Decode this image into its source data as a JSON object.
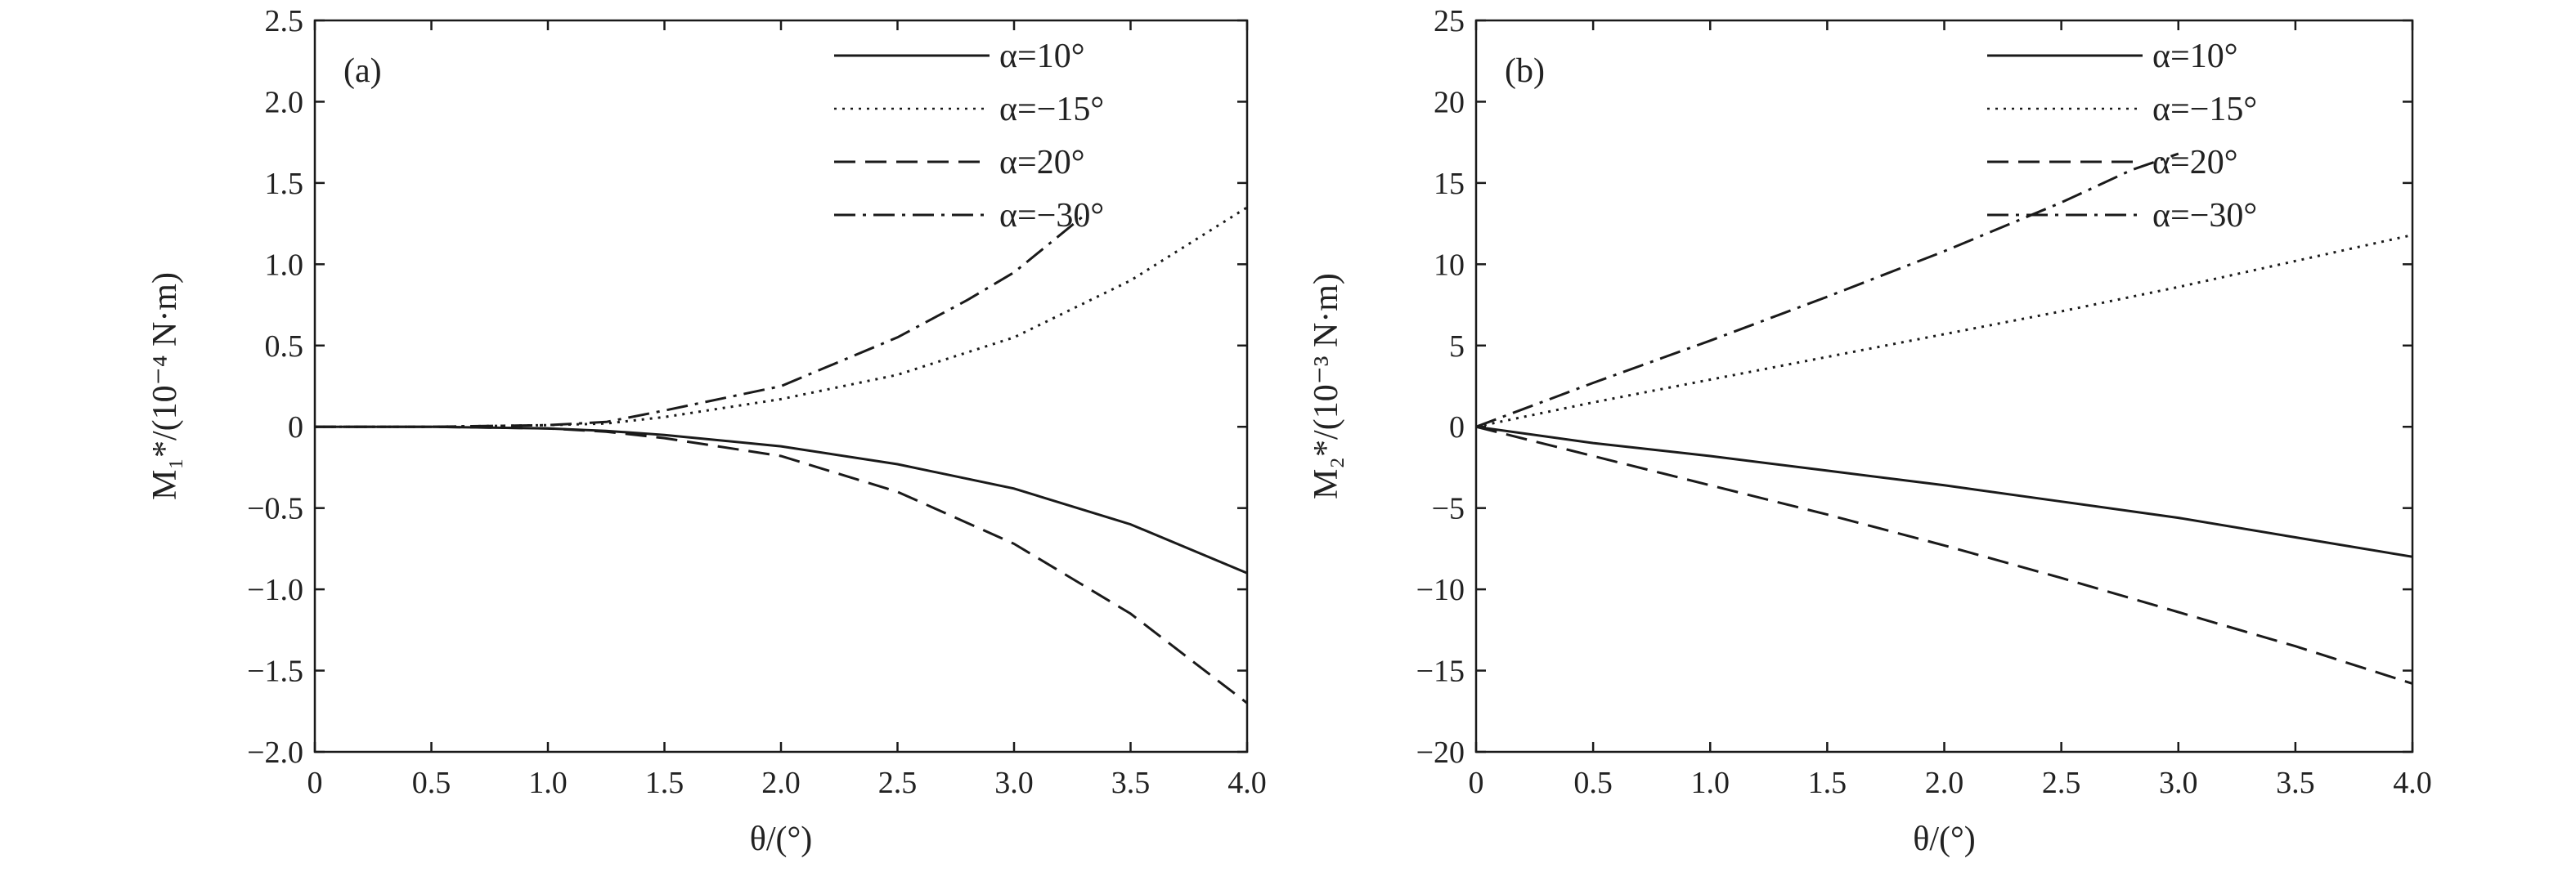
{
  "chart_data": [
    {
      "type": "line",
      "panel_label": "(a)",
      "xlabel": "θ/(°)",
      "ylabel": "M₁*/(10⁻⁴ N·m)",
      "xlim": [
        0,
        4.0
      ],
      "ylim": [
        -2.0,
        2.5
      ],
      "xticks": [
        "0",
        "0.5",
        "1.0",
        "1.5",
        "2.0",
        "2.5",
        "3.0",
        "3.5",
        "4.0"
      ],
      "yticks": [
        "−2.0",
        "−1.5",
        "−1.0",
        "−0.5",
        "0",
        "0.5",
        "1.0",
        "1.5",
        "2.0",
        "2.5"
      ],
      "legend_position": "top-right",
      "grid": false,
      "series": [
        {
          "name": "α=10°",
          "style": "solid",
          "x": [
            0,
            0.5,
            1.0,
            1.25,
            1.5,
            2.0,
            2.5,
            3.0,
            3.5,
            4.0
          ],
          "y": [
            0,
            0,
            -0.01,
            -0.025,
            -0.05,
            -0.12,
            -0.23,
            -0.38,
            -0.6,
            -0.9
          ]
        },
        {
          "name": "α=−15°",
          "style": "dotted",
          "x": [
            0,
            0.5,
            1.0,
            1.25,
            1.5,
            2.0,
            2.5,
            3.0,
            3.5,
            4.0
          ],
          "y": [
            0,
            0,
            0.01,
            0.02,
            0.06,
            0.17,
            0.32,
            0.55,
            0.9,
            1.35
          ]
        },
        {
          "name": "α=20°",
          "style": "dashed",
          "x": [
            0,
            0.5,
            1.0,
            1.25,
            1.5,
            2.0,
            2.5,
            3.0,
            3.5,
            4.0
          ],
          "y": [
            0,
            0,
            -0.01,
            -0.03,
            -0.07,
            -0.18,
            -0.4,
            -0.72,
            -1.15,
            -1.7
          ]
        },
        {
          "name": "α=−30°",
          "style": "dashdot",
          "x": [
            0,
            0.5,
            1.0,
            1.25,
            1.5,
            2.0,
            2.5,
            2.8,
            3.0,
            3.3
          ],
          "y": [
            0,
            0,
            0.01,
            0.03,
            0.1,
            0.25,
            0.55,
            0.78,
            0.95,
            1.3
          ]
        }
      ]
    },
    {
      "type": "line",
      "panel_label": "(b)",
      "xlabel": "θ/(°)",
      "ylabel": "M₂*/(10⁻³ N·m)",
      "xlim": [
        0,
        4.0
      ],
      "ylim": [
        -20,
        25
      ],
      "xticks": [
        "0",
        "0.5",
        "1.0",
        "1.5",
        "2.0",
        "2.5",
        "3.0",
        "3.5",
        "4.0"
      ],
      "yticks": [
        "−20",
        "−15",
        "−10",
        "−5",
        "0",
        "5",
        "10",
        "15",
        "20",
        "25"
      ],
      "legend_position": "top-right",
      "grid": false,
      "series": [
        {
          "name": "α=10°",
          "style": "solid",
          "x": [
            0,
            0.5,
            1.0,
            1.5,
            2.0,
            2.5,
            3.0,
            3.5,
            4.0
          ],
          "y": [
            0,
            -1.0,
            -1.8,
            -2.7,
            -3.6,
            -4.6,
            -5.6,
            -6.8,
            -8.0
          ]
        },
        {
          "name": "α=−15°",
          "style": "dotted",
          "x": [
            0,
            0.5,
            1.0,
            1.5,
            2.0,
            2.5,
            3.0,
            3.5,
            4.0
          ],
          "y": [
            0,
            1.5,
            2.9,
            4.3,
            5.7,
            7.1,
            8.6,
            10.2,
            11.8
          ]
        },
        {
          "name": "α=20°",
          "style": "dashed",
          "x": [
            0,
            0.5,
            1.0,
            1.5,
            2.0,
            2.5,
            3.0,
            3.5,
            4.0
          ],
          "y": [
            0,
            -1.8,
            -3.6,
            -5.4,
            -7.3,
            -9.3,
            -11.4,
            -13.5,
            -15.8
          ]
        },
        {
          "name": "α=−30°",
          "style": "dashdot",
          "x": [
            0,
            0.5,
            1.0,
            1.5,
            2.0,
            2.5,
            2.8,
            3.0
          ],
          "y": [
            0,
            2.7,
            5.3,
            8.0,
            10.8,
            13.8,
            15.8,
            16.8
          ]
        }
      ]
    }
  ]
}
